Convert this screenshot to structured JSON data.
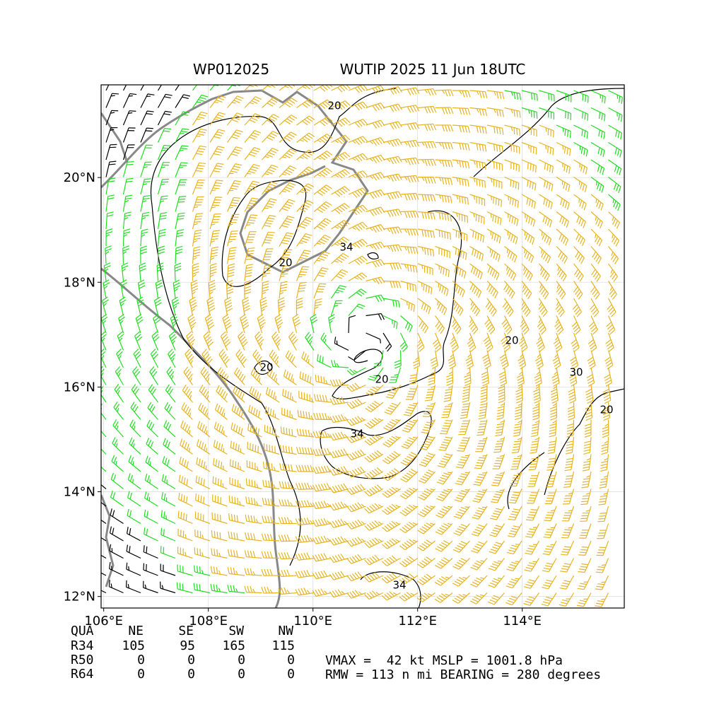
{
  "map": {
    "title_left": "WP012025",
    "title_right": "WUTIP 2025 11 Jun 18UTC",
    "xlim": [
      105.95,
      115.95
    ],
    "ylim": [
      11.78,
      21.77
    ],
    "xticks": [
      {
        "value": 106,
        "label": "106°E"
      },
      {
        "value": 108,
        "label": "108°E"
      },
      {
        "value": 110,
        "label": "110°E"
      },
      {
        "value": 112,
        "label": "112°E"
      },
      {
        "value": 114,
        "label": "114°E"
      }
    ],
    "yticks": [
      {
        "value": 12,
        "label": "12°N"
      },
      {
        "value": 14,
        "label": "14°N"
      },
      {
        "value": 16,
        "label": "16°N"
      },
      {
        "value": 18,
        "label": "18°N"
      },
      {
        "value": 20,
        "label": "20°N"
      }
    ],
    "contour_labels": [
      "20",
      "34",
      "20",
      "20",
      "20",
      "34",
      "20",
      "30",
      "20",
      "34"
    ]
  },
  "table": {
    "header": [
      "QUA",
      "NE",
      "SE",
      "SW",
      "NW"
    ],
    "rows": [
      [
        "R34",
        "105",
        "95",
        "165",
        "115"
      ],
      [
        "R50",
        "0",
        "0",
        "0",
        "0"
      ],
      [
        "R64",
        "0",
        "0",
        "0",
        "0"
      ]
    ]
  },
  "info": {
    "line1": "VMAX =  42 kt MSLP = 1001.8 hPa",
    "line2": "RMW = 113 n mi BEARING = 280 degrees"
  }
}
